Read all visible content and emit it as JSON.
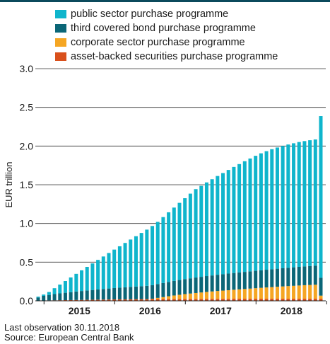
{
  "chart_data": {
    "type": "bar",
    "stacked": true,
    "ylabel": "EUR trillion",
    "ylim": [
      0,
      3.0
    ],
    "yticks": [
      "0.0",
      "0.5",
      "1.0",
      "1.5",
      "2.0",
      "2.5",
      "3.0"
    ],
    "xticks": [
      "2015",
      "2016",
      "2017",
      "2018"
    ],
    "grid": "horizontal",
    "legend_position": "top",
    "series": [
      {
        "name": "public sector purchase programme",
        "color": "#0fb5cc",
        "values": [
          0.012,
          0.017,
          0.038,
          0.076,
          0.114,
          0.152,
          0.19,
          0.228,
          0.267,
          0.305,
          0.343,
          0.382,
          0.42,
          0.459,
          0.497,
          0.535,
          0.573,
          0.612,
          0.65,
          0.688,
          0.726,
          0.765,
          0.803,
          0.852,
          0.9,
          0.948,
          0.997,
          1.045,
          1.094,
          1.142,
          1.176,
          1.21,
          1.243,
          1.276,
          1.307,
          1.339,
          1.37,
          1.4,
          1.43,
          1.458,
          1.486,
          1.511,
          1.532,
          1.551,
          1.566,
          1.58,
          1.593,
          1.603,
          1.613,
          1.619,
          1.625,
          1.63,
          2.09
        ]
      },
      {
        "name": "third covered bond purchase programme",
        "color": "#0b6677",
        "values": [
          0.04,
          0.06,
          0.07,
          0.08,
          0.088,
          0.095,
          0.102,
          0.11,
          0.115,
          0.121,
          0.126,
          0.132,
          0.137,
          0.142,
          0.147,
          0.151,
          0.156,
          0.16,
          0.164,
          0.168,
          0.172,
          0.175,
          0.179,
          0.182,
          0.185,
          0.188,
          0.191,
          0.194,
          0.197,
          0.2,
          0.202,
          0.205,
          0.207,
          0.21,
          0.212,
          0.215,
          0.217,
          0.219,
          0.221,
          0.223,
          0.225,
          0.227,
          0.229,
          0.231,
          0.233,
          0.235,
          0.237,
          0.239,
          0.241,
          0.243,
          0.245,
          0.247,
          0.23
        ]
      },
      {
        "name": "corporate sector purchase programme",
        "color": "#f5a623",
        "values": [
          0,
          0,
          0,
          0,
          0,
          0,
          0,
          0,
          0,
          0,
          0,
          0,
          0,
          0,
          0,
          0,
          0,
          0,
          0,
          0,
          0,
          0.005,
          0.015,
          0.025,
          0.035,
          0.045,
          0.054,
          0.062,
          0.069,
          0.076,
          0.083,
          0.089,
          0.095,
          0.101,
          0.106,
          0.111,
          0.116,
          0.121,
          0.126,
          0.131,
          0.136,
          0.141,
          0.146,
          0.15,
          0.155,
          0.159,
          0.163,
          0.167,
          0.171,
          0.175,
          0.178,
          0.181,
          0.04
        ]
      },
      {
        "name": "asset-backed securities purchase programme",
        "color": "#d9501c",
        "values": [
          0.002,
          0.004,
          0.006,
          0.007,
          0.008,
          0.009,
          0.01,
          0.011,
          0.012,
          0.013,
          0.014,
          0.015,
          0.016,
          0.017,
          0.018,
          0.019,
          0.019,
          0.02,
          0.021,
          0.021,
          0.022,
          0.022,
          0.023,
          0.023,
          0.024,
          0.024,
          0.024,
          0.025,
          0.025,
          0.025,
          0.025,
          0.026,
          0.026,
          0.026,
          0.026,
          0.026,
          0.027,
          0.027,
          0.027,
          0.027,
          0.027,
          0.027,
          0.027,
          0.027,
          0.027,
          0.027,
          0.027,
          0.027,
          0.027,
          0.027,
          0.027,
          0.027,
          0.027
        ]
      }
    ]
  },
  "footnotes": {
    "last_observation": "Last observation 30.11.2018",
    "source": "Source: European Central Bank"
  }
}
